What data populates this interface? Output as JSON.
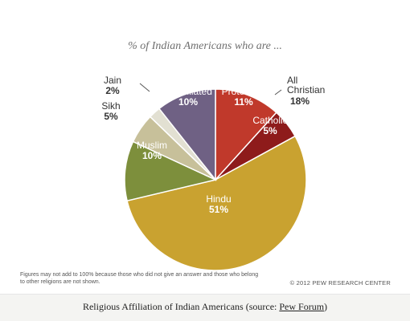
{
  "chart_data": {
    "type": "pie",
    "title": "% of Indian Americans who are ...",
    "slices": [
      {
        "label": "Protestant",
        "value": 11,
        "pct_label": "11%",
        "color": "#c0392b",
        "label_color": "#ffffff"
      },
      {
        "label": "Catholic",
        "value": 5,
        "pct_label": "5%",
        "color": "#8e1b1b",
        "label_color": "#ffffff"
      },
      {
        "label": "Hindu",
        "value": 51,
        "pct_label": "51%",
        "color": "#c9a230",
        "label_color": "#ffffff"
      },
      {
        "label": "Muslim",
        "value": 10,
        "pct_label": "10%",
        "color": "#7d8f3c",
        "label_color": "#ffffff"
      },
      {
        "label": "Sikh",
        "value": 5,
        "pct_label": "5%",
        "color": "#c7c09a",
        "label_color": "#333333"
      },
      {
        "label": "Jain",
        "value": 2,
        "pct_label": "2%",
        "color": "#e2e0d2",
        "label_color": "#333333"
      },
      {
        "label": "Unaffiliated",
        "value": 10,
        "pct_label": "10%",
        "color": "#6f6184",
        "label_color": "#ffffff"
      }
    ],
    "group_annotation": {
      "label": "All Christian",
      "pct_label": "18%"
    },
    "footnote": "Figures may not add to 100% because those who did not give an answer and those who belong to other religions are not shown.",
    "credit": "© 2012 PEW RESEARCH CENTER"
  },
  "caption": {
    "text": "Religious Affiliation of Indian Americans (source: ",
    "link": "Pew Forum",
    "suffix": ")"
  }
}
